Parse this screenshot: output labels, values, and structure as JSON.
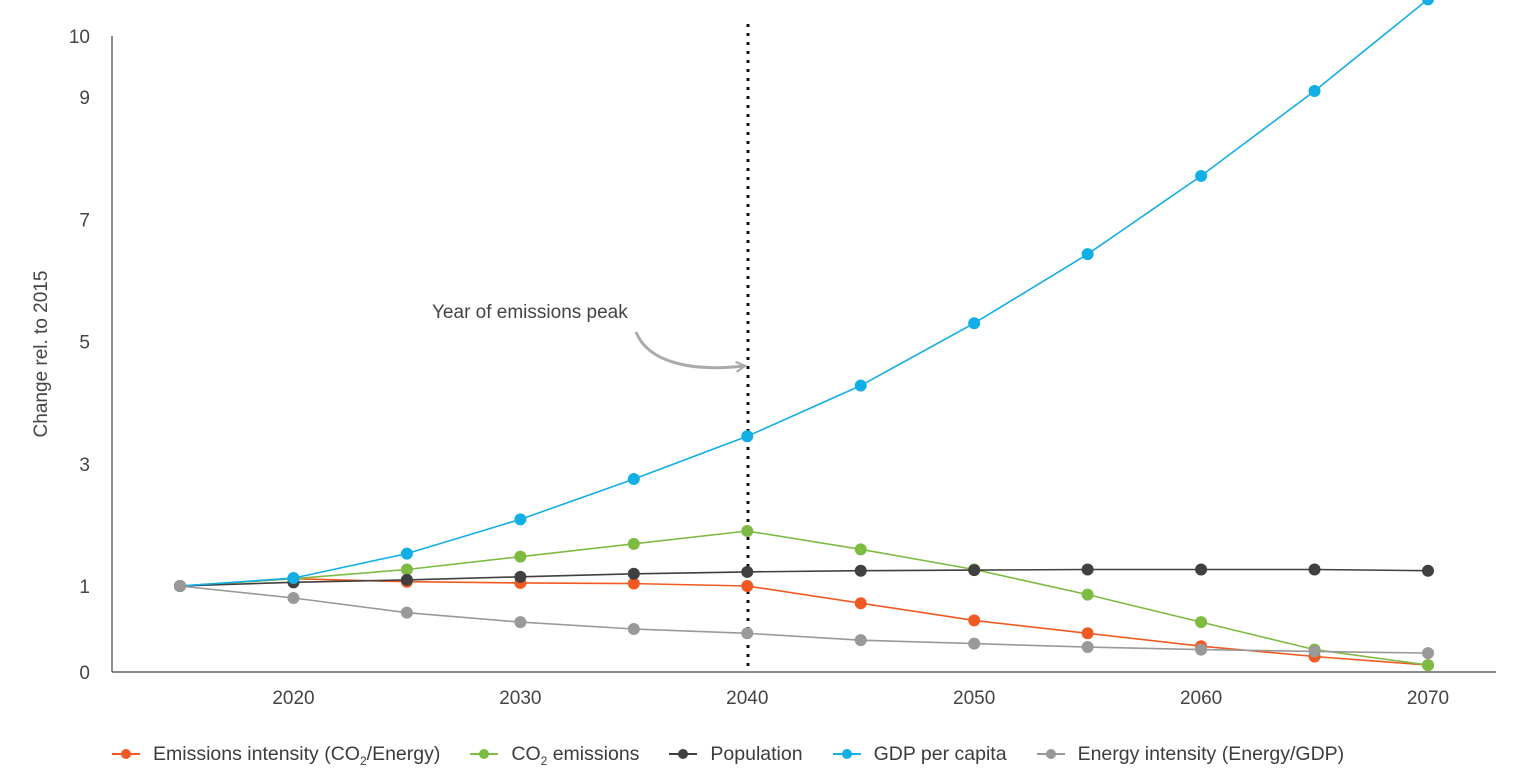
{
  "chart_data": {
    "type": "line",
    "title": "",
    "xlabel": "",
    "ylabel": "Change rel. to 2015",
    "x": [
      2015,
      2020,
      2025,
      2030,
      2035,
      2040,
      2045,
      2050,
      2055,
      2060,
      2065,
      2070
    ],
    "x_ticks": [
      2020,
      2030,
      2040,
      2050,
      2060,
      2070
    ],
    "x_tick_labels": [
      "2020",
      "2030",
      "2040",
      "2050",
      "2060",
      "2070"
    ],
    "y_ticks": [
      0,
      1,
      3,
      5,
      7,
      9,
      10
    ],
    "y_tick_labels": [
      "0",
      "1",
      "3",
      "5",
      "7",
      "9",
      "10"
    ],
    "xlim": [
      2012,
      2073
    ],
    "ylim": [
      0,
      10
    ],
    "grid": false,
    "legend_position": "bottom",
    "series": [
      {
        "name": "Emissions intensity (CO2/Energy)",
        "name_main": "Emissions intensity (CO",
        "name_sub": "2",
        "name_tail": "/Energy)",
        "color": "#f05a22",
        "values": [
          1.0,
          1.12,
          1.07,
          1.05,
          1.04,
          1.0,
          0.8,
          0.6,
          0.45,
          0.3,
          0.18,
          0.08
        ]
      },
      {
        "name": "CO2 emissions",
        "name_main": "CO",
        "name_sub": "2",
        "name_tail": " emissions",
        "color": "#7dbb42",
        "values": [
          1.0,
          1.12,
          1.27,
          1.48,
          1.69,
          1.9,
          1.6,
          1.27,
          0.9,
          0.58,
          0.26,
          0.08
        ]
      },
      {
        "name": "Population",
        "name_main": "Population",
        "name_sub": "",
        "name_tail": "",
        "color": "#404040",
        "values": [
          1.0,
          1.06,
          1.1,
          1.15,
          1.2,
          1.23,
          1.25,
          1.26,
          1.27,
          1.27,
          1.27,
          1.25
        ]
      },
      {
        "name": "GDP per capita",
        "name_main": "GDP per capita",
        "name_sub": "",
        "name_tail": "",
        "color": "#12aee6",
        "values": [
          1.0,
          1.13,
          1.53,
          2.09,
          2.75,
          3.45,
          4.28,
          5.3,
          6.43,
          7.71,
          9.1,
          10.6
        ]
      },
      {
        "name": "Energy intensity (Energy/GDP)",
        "name_main": "Energy intensity (Energy/GDP)",
        "name_sub": "",
        "name_tail": "",
        "color": "#999999",
        "values": [
          1.0,
          0.86,
          0.69,
          0.58,
          0.5,
          0.45,
          0.37,
          0.33,
          0.29,
          0.26,
          0.24,
          0.22
        ]
      }
    ],
    "annotations": [
      {
        "text": "Year of emissions peak",
        "x": 2040
      }
    ]
  }
}
